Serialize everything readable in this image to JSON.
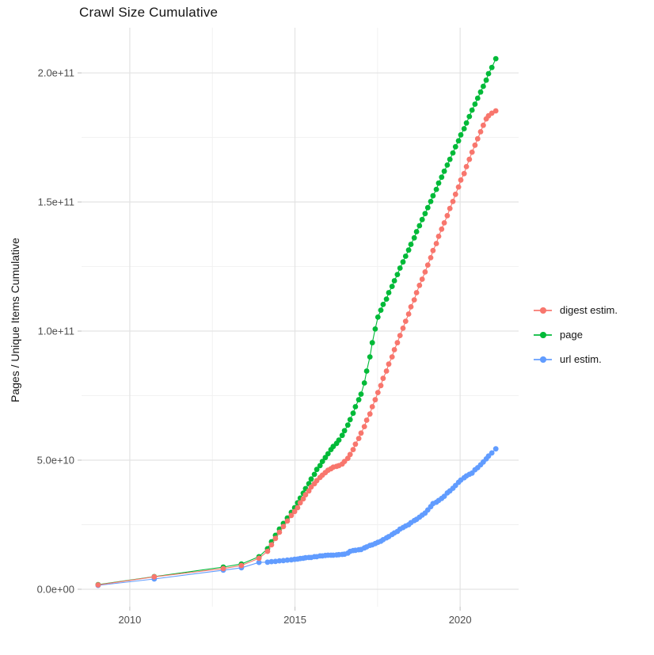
{
  "title": "Crawl Size Cumulative",
  "y_axis": {
    "label": "Pages / Unique Items Cumulative",
    "tick_labels": [
      "0.0e+00",
      "5.0e+10",
      "1.0e+11",
      "1.5e+11",
      "2.0e+11"
    ],
    "tick_values_billions": [
      0,
      50,
      100,
      150,
      200
    ],
    "minor_values_billions": [
      25,
      75,
      125,
      175
    ]
  },
  "x_axis": {
    "tick_labels": [
      "2010",
      "2015",
      "2020"
    ],
    "tick_values": [
      2010,
      2015,
      2020
    ],
    "minor_values": [
      2012.5,
      2017.5
    ]
  },
  "legend": {
    "items": [
      {
        "label": "digest estim.",
        "color": "#F8766D"
      },
      {
        "label": "page",
        "color": "#00BA38"
      },
      {
        "label": "url estim.",
        "color": "#619CFF"
      }
    ]
  },
  "colors": {
    "digest": "#F8766D",
    "page": "#00BA38",
    "url": "#619CFF",
    "grid_major": "#E3E3E3",
    "grid_minor": "#F0F0F0",
    "tick_mark": "#c9c9c9",
    "axis_text": "#4d4d4d",
    "text": "#141414"
  },
  "chart_data": {
    "type": "line",
    "title": "Crawl Size Cumulative",
    "xlabel": "",
    "ylabel": "Pages / Unique Items Cumulative",
    "legend_position": "right",
    "grid": true,
    "y_unit": "pages, in billions (1e9)",
    "x_range": [
      2008.54,
      2021.77
    ],
    "y_range_billions": [
      -6.75,
      217.5
    ],
    "x": [
      2009.04,
      2010.74,
      2012.83,
      2013.38,
      2013.91,
      2014.17,
      2014.29,
      2014.41,
      2014.53,
      2014.65,
      2014.77,
      2014.89,
      2014.99,
      2015.08,
      2015.16,
      2015.25,
      2015.32,
      2015.42,
      2015.49,
      2015.59,
      2015.66,
      2015.76,
      2015.83,
      2015.92,
      2016.0,
      2016.09,
      2016.16,
      2016.26,
      2016.33,
      2016.43,
      2016.5,
      2016.6,
      2016.67,
      2016.76,
      2016.83,
      2016.93,
      2017.0,
      2017.1,
      2017.17,
      2017.27,
      2017.34,
      2017.43,
      2017.51,
      2017.6,
      2017.67,
      2017.77,
      2017.84,
      2017.94,
      2018.01,
      2018.1,
      2018.18,
      2018.27,
      2018.35,
      2018.44,
      2018.51,
      2018.61,
      2018.68,
      2018.77,
      2018.85,
      2018.94,
      2019.02,
      2019.11,
      2019.18,
      2019.28,
      2019.35,
      2019.44,
      2019.52,
      2019.61,
      2019.69,
      2019.78,
      2019.86,
      2019.95,
      2020.02,
      2020.12,
      2020.19,
      2020.28,
      2020.36,
      2020.45,
      2020.53,
      2020.62,
      2020.7,
      2020.79,
      2020.86,
      2020.96,
      2021.08
    ],
    "series": [
      {
        "name": "page",
        "color": "#00BA38",
        "y": [
          1.8,
          4.9,
          8.6,
          9.8,
          12.6,
          15.7,
          18.4,
          20.9,
          23.3,
          25.5,
          27.6,
          29.8,
          31.6,
          33.5,
          35.3,
          37.2,
          39.0,
          40.9,
          42.7,
          44.5,
          46.4,
          47.9,
          49.5,
          51.0,
          52.5,
          54.1,
          55.3,
          56.5,
          57.8,
          59.6,
          61.4,
          63.6,
          65.7,
          68.2,
          70.7,
          73.4,
          75.6,
          79.9,
          84.5,
          90.0,
          95.5,
          100.8,
          105.4,
          108.1,
          110.3,
          112.4,
          114.9,
          117.3,
          119.5,
          121.9,
          124.4,
          126.8,
          129.0,
          131.4,
          133.6,
          136.1,
          138.5,
          140.8,
          143.2,
          145.5,
          147.8,
          150.2,
          152.4,
          154.9,
          157.3,
          159.6,
          161.9,
          164.3,
          166.5,
          169.0,
          171.4,
          173.7,
          176.0,
          178.4,
          180.6,
          183.1,
          185.6,
          187.9,
          190.2,
          192.6,
          194.8,
          197.2,
          199.7,
          202.1,
          205.5
        ]
      },
      {
        "name": "url estim.",
        "color": "#619CFF",
        "y": [
          1.5,
          4.0,
          7.4,
          8.3,
          10.4,
          10.5,
          10.7,
          10.8,
          11.0,
          11.1,
          11.3,
          11.4,
          11.6,
          11.7,
          11.9,
          12.0,
          12.2,
          12.3,
          12.3,
          12.6,
          12.6,
          12.9,
          12.9,
          13.1,
          13.2,
          13.2,
          13.2,
          13.3,
          13.4,
          13.5,
          13.6,
          14.0,
          14.7,
          15.0,
          15.1,
          15.3,
          15.4,
          16.0,
          16.4,
          17.0,
          17.2,
          17.7,
          18.2,
          18.6,
          19.2,
          19.9,
          20.4,
          21.2,
          21.8,
          22.4,
          23.3,
          23.9,
          24.5,
          25.0,
          25.8,
          26.6,
          27.1,
          27.9,
          28.7,
          29.5,
          30.7,
          32.0,
          33.2,
          33.7,
          34.4,
          35.2,
          36.0,
          37.3,
          38.1,
          39.1,
          40.2,
          41.4,
          42.3,
          43.2,
          43.9,
          44.5,
          45.0,
          46.3,
          47.1,
          48.2,
          49.3,
          50.5,
          51.6,
          52.8,
          54.4
        ]
      },
      {
        "name": "digest estim.",
        "color": "#F8766D",
        "y": [
          1.7,
          4.8,
          8.0,
          9.2,
          12.0,
          14.7,
          17.2,
          19.7,
          22.1,
          24.3,
          26.4,
          28.6,
          30.1,
          31.6,
          33.5,
          35.0,
          36.6,
          38.1,
          39.6,
          40.9,
          42.1,
          43.3,
          44.2,
          45.2,
          46.1,
          46.7,
          47.3,
          47.6,
          47.9,
          48.5,
          49.5,
          50.7,
          52.2,
          54.1,
          56.2,
          58.4,
          60.5,
          63.0,
          65.5,
          67.9,
          70.7,
          73.4,
          76.2,
          78.9,
          81.7,
          84.5,
          87.2,
          90.0,
          92.8,
          95.5,
          98.3,
          101.1,
          103.8,
          106.6,
          109.4,
          112.1,
          114.9,
          117.7,
          120.1,
          122.9,
          125.6,
          128.4,
          131.2,
          133.9,
          136.7,
          139.5,
          141.9,
          144.7,
          147.5,
          150.2,
          153.0,
          155.8,
          158.5,
          161.0,
          163.7,
          166.5,
          169.3,
          172.0,
          174.5,
          177.2,
          179.7,
          182.2,
          183.4,
          184.4,
          185.3
        ]
      }
    ]
  }
}
